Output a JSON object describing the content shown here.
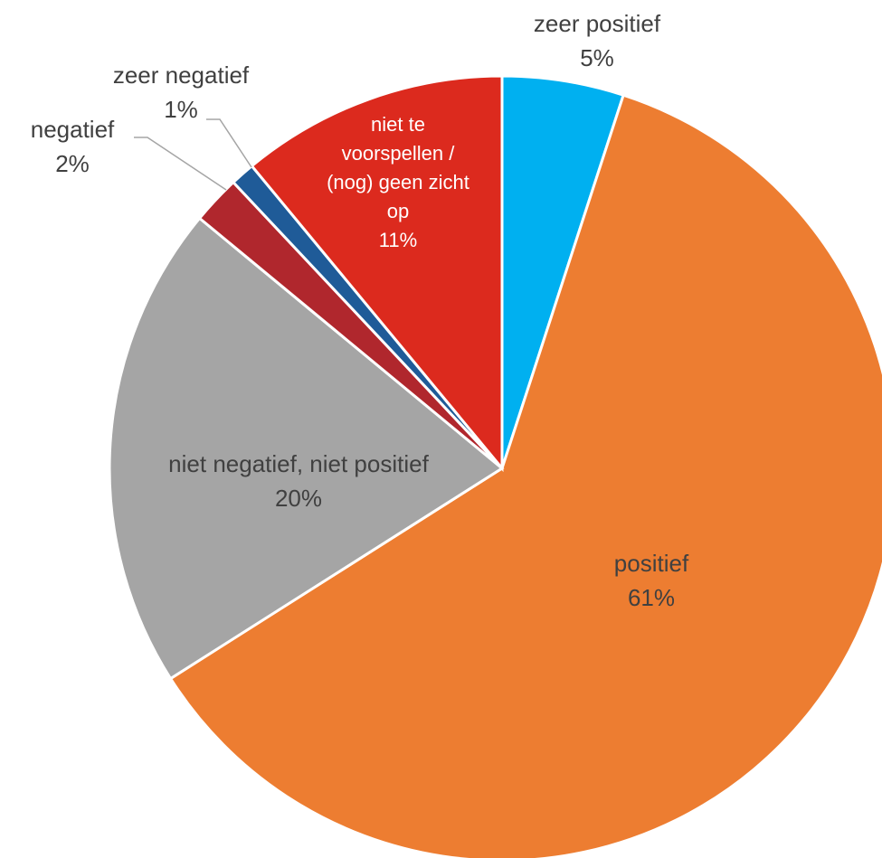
{
  "chart_data": {
    "type": "pie",
    "categories": [
      "zeer positief",
      "positief",
      "niet negatief, niet positief",
      "negatief",
      "zeer negatief",
      "niet te voorspellen / (nog) geen zicht op"
    ],
    "values": [
      5,
      61,
      20,
      2,
      1,
      11
    ],
    "value_labels": [
      "5%",
      "61%",
      "20%",
      "2%",
      "1%",
      "11%"
    ],
    "colors": [
      "#00b0f0",
      "#ed7d31",
      "#a5a5a5",
      "#b0272d",
      "#1f5b98",
      "#dc2a1e"
    ]
  }
}
